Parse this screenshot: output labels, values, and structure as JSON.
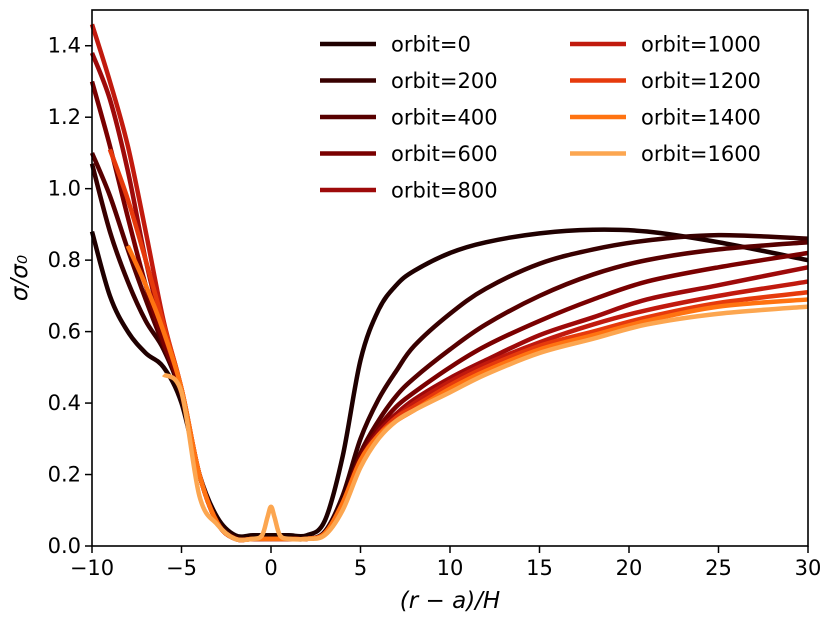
{
  "chart_data": {
    "type": "line",
    "xlabel": "(r − a)/H",
    "ylabel": "σ/σ₀",
    "xlim": [
      -10,
      30
    ],
    "ylim": [
      0,
      1.5
    ],
    "xticks": [
      -10,
      -5,
      0,
      5,
      10,
      15,
      20,
      25,
      30
    ],
    "xtick_labels": [
      "−10",
      "−5",
      "0",
      "5",
      "10",
      "15",
      "20",
      "25",
      "30"
    ],
    "yticks": [
      0.0,
      0.2,
      0.4,
      0.6,
      0.8,
      1.0,
      1.2,
      1.4
    ],
    "ytick_labels": [
      "0.0",
      "0.2",
      "0.4",
      "0.6",
      "0.8",
      "1.0",
      "1.2",
      "1.4"
    ],
    "grid": false,
    "legend_position": "top-right",
    "series": [
      {
        "name": "orbit=0",
        "color": "#1f0000",
        "x": [
          -10,
          -9,
          -8,
          -7,
          -6,
          -5,
          -4,
          -3,
          -2,
          -1,
          0,
          1,
          2,
          3,
          4,
          5,
          6,
          7,
          8,
          10,
          12,
          15,
          18,
          21,
          25,
          30
        ],
        "y": [
          0.88,
          0.7,
          0.6,
          0.54,
          0.5,
          0.4,
          0.2,
          0.08,
          0.03,
          0.03,
          0.03,
          0.03,
          0.03,
          0.07,
          0.25,
          0.52,
          0.66,
          0.73,
          0.77,
          0.82,
          0.85,
          0.875,
          0.885,
          0.88,
          0.85,
          0.8
        ]
      },
      {
        "name": "orbit=200",
        "color": "#380000",
        "x": [
          -10,
          -9,
          -8,
          -7,
          -6,
          -5,
          -4,
          -3,
          -2,
          -1,
          0,
          1,
          2,
          3,
          4,
          5,
          6,
          7,
          8,
          10,
          12,
          15,
          18,
          21,
          25,
          30
        ],
        "y": [
          1.07,
          0.88,
          0.74,
          0.63,
          0.55,
          0.42,
          0.2,
          0.07,
          0.025,
          0.02,
          0.02,
          0.02,
          0.02,
          0.04,
          0.14,
          0.3,
          0.41,
          0.49,
          0.56,
          0.65,
          0.72,
          0.79,
          0.83,
          0.855,
          0.87,
          0.86
        ]
      },
      {
        "name": "orbit=400",
        "color": "#580000",
        "x": [
          -10,
          -9,
          -8,
          -7,
          -6,
          -5,
          -4,
          -3,
          -2,
          -1,
          0,
          1,
          2,
          3,
          4,
          5,
          6,
          7,
          8,
          10,
          12,
          15,
          18,
          21,
          25,
          30
        ],
        "y": [
          1.1,
          0.98,
          0.83,
          0.69,
          0.56,
          0.43,
          0.2,
          0.065,
          0.02,
          0.02,
          0.02,
          0.02,
          0.02,
          0.035,
          0.12,
          0.26,
          0.35,
          0.42,
          0.47,
          0.55,
          0.62,
          0.7,
          0.76,
          0.8,
          0.83,
          0.85
        ]
      },
      {
        "name": "orbit=600",
        "color": "#7a0000",
        "x": [
          -10,
          -9,
          -8,
          -7,
          -6,
          -5,
          -4,
          -3,
          -2,
          -1,
          0,
          1,
          2,
          3,
          4,
          5,
          6,
          7,
          8,
          10,
          12,
          15,
          18,
          21,
          25,
          30
        ],
        "y": [
          1.3,
          1.12,
          0.92,
          0.73,
          0.57,
          0.43,
          0.2,
          0.065,
          0.02,
          0.02,
          0.02,
          0.02,
          0.02,
          0.035,
          0.12,
          0.25,
          0.33,
          0.39,
          0.43,
          0.5,
          0.56,
          0.63,
          0.69,
          0.74,
          0.78,
          0.82
        ]
      },
      {
        "name": "orbit=800",
        "color": "#9e0a0a",
        "x": [
          -10,
          -9,
          -8,
          -7,
          -6,
          -5,
          -4,
          -3,
          -2,
          -1,
          0,
          1,
          2,
          3,
          4,
          5,
          6,
          7,
          8,
          10,
          12,
          15,
          18,
          21,
          25,
          30
        ],
        "y": [
          1.38,
          1.25,
          1.05,
          0.8,
          0.6,
          0.44,
          0.2,
          0.065,
          0.02,
          0.02,
          0.02,
          0.02,
          0.02,
          0.035,
          0.12,
          0.24,
          0.32,
          0.37,
          0.41,
          0.47,
          0.52,
          0.59,
          0.64,
          0.69,
          0.73,
          0.78
        ]
      },
      {
        "name": "orbit=1000",
        "color": "#c11a0e",
        "x": [
          -10,
          -9,
          -8,
          -7,
          -6,
          -5,
          -4,
          -3,
          -2,
          -1,
          0,
          1,
          2,
          3,
          4,
          5,
          6,
          7,
          8,
          10,
          12,
          15,
          18,
          21,
          25,
          30
        ],
        "y": [
          1.46,
          1.3,
          1.12,
          0.88,
          0.63,
          0.44,
          0.2,
          0.065,
          0.02,
          0.02,
          0.02,
          0.02,
          0.02,
          0.035,
          0.12,
          0.24,
          0.31,
          0.36,
          0.4,
          0.46,
          0.51,
          0.57,
          0.62,
          0.66,
          0.7,
          0.74
        ]
      },
      {
        "name": "orbit=1200",
        "color": "#e63a0c",
        "x": [
          -9,
          -8,
          -7,
          -6,
          -5,
          -4,
          -3,
          -2,
          -1,
          0,
          1,
          2,
          3,
          4,
          5,
          6,
          7,
          8,
          10,
          12,
          15,
          18,
          21,
          25,
          30
        ],
        "y": [
          1.11,
          0.97,
          0.8,
          0.62,
          0.44,
          0.2,
          0.065,
          0.02,
          0.02,
          0.02,
          0.02,
          0.02,
          0.035,
          0.12,
          0.24,
          0.31,
          0.36,
          0.39,
          0.45,
          0.5,
          0.56,
          0.6,
          0.64,
          0.68,
          0.71
        ]
      },
      {
        "name": "orbit=1400",
        "color": "#ff7311",
        "x": [
          -8,
          -7,
          -6,
          -5,
          -4,
          -3,
          -2,
          -1,
          0,
          1,
          2,
          3,
          4,
          5,
          6,
          7,
          8,
          10,
          12,
          15,
          18,
          21,
          25,
          30
        ],
        "y": [
          0.84,
          0.73,
          0.6,
          0.44,
          0.2,
          0.065,
          0.02,
          0.02,
          0.02,
          0.02,
          0.02,
          0.035,
          0.12,
          0.24,
          0.31,
          0.35,
          0.38,
          0.44,
          0.49,
          0.55,
          0.59,
          0.63,
          0.67,
          0.69
        ]
      },
      {
        "name": "orbit=1600",
        "color": "#fca650",
        "x": [
          -6,
          -5,
          -4,
          -3,
          -2,
          -1,
          -0.5,
          -0.2,
          0,
          0.2,
          0.5,
          1,
          2,
          3,
          4,
          5,
          6,
          7,
          8,
          10,
          12,
          15,
          18,
          21,
          25,
          30
        ],
        "y": [
          0.48,
          0.43,
          0.14,
          0.06,
          0.02,
          0.02,
          0.03,
          0.08,
          0.11,
          0.08,
          0.03,
          0.02,
          0.02,
          0.03,
          0.1,
          0.22,
          0.3,
          0.35,
          0.38,
          0.43,
          0.48,
          0.54,
          0.58,
          0.62,
          0.65,
          0.67
        ]
      }
    ]
  }
}
